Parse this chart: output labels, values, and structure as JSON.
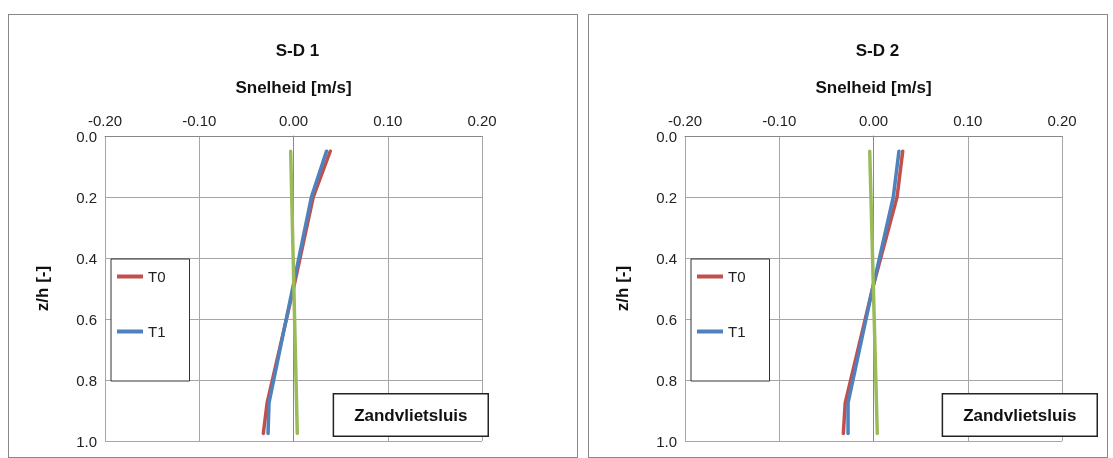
{
  "chart_data": [
    {
      "type": "line",
      "title": "S-D 1",
      "xlabel": "Snelheid [m/s]",
      "ylabel": "z/h [-]",
      "annotations": [
        "Zandvlietsluis"
      ],
      "xlim": [
        -0.2,
        0.2
      ],
      "ylim": [
        1.0,
        0.0
      ],
      "xticks": [
        {
          "value": -0.2,
          "label": "-0.20"
        },
        {
          "value": -0.1,
          "label": "-0.10"
        },
        {
          "value": 0,
          "label": "0.00"
        },
        {
          "value": 0.1,
          "label": "0.10"
        },
        {
          "value": 0.2,
          "label": "0.20"
        }
      ],
      "yticks": [
        {
          "value": 0,
          "label": "0.0"
        },
        {
          "value": 0.2,
          "label": "0.2"
        },
        {
          "value": 0.4,
          "label": "0.4"
        },
        {
          "value": 0.6,
          "label": "0.6"
        },
        {
          "value": 0.8,
          "label": "0.8"
        },
        {
          "value": 1,
          "label": "1.0"
        }
      ],
      "grid": true,
      "legend": "left",
      "marker": "none",
      "series": [
        {
          "name": "T0",
          "color": "#c0504d",
          "x": [
            0.039,
            0.021,
            0.0,
            -0.028,
            -0.032
          ],
          "values": [
            0.05,
            0.2,
            0.5,
            0.875,
            0.975
          ]
        },
        {
          "name": "T1",
          "color": "#4f81bd",
          "x": [
            0.035,
            0.019,
            -0.001,
            -0.026,
            -0.027
          ],
          "values": [
            0.05,
            0.2,
            0.5,
            0.875,
            0.975
          ]
        },
        {
          "color": "#9bbb59",
          "x": [
            -0.003,
            0.004
          ],
          "values": [
            0.05,
            0.975
          ]
        }
      ]
    },
    {
      "type": "line",
      "title": "S-D 2",
      "xlabel": "Snelheid [m/s]",
      "ylabel": "z/h [-]",
      "annotations": [
        "Zandvlietsluis"
      ],
      "xlim": [
        -0.2,
        0.2
      ],
      "ylim": [
        1.0,
        0.0
      ],
      "xticks": [
        {
          "value": -0.2,
          "label": "-0.20"
        },
        {
          "value": -0.1,
          "label": "-0.10"
        },
        {
          "value": 0,
          "label": "0.00"
        },
        {
          "value": 0.1,
          "label": "0.10"
        },
        {
          "value": 0.2,
          "label": "0.20"
        }
      ],
      "yticks": [
        {
          "value": 0,
          "label": "0.0"
        },
        {
          "value": 0.2,
          "label": "0.2"
        },
        {
          "value": 0.4,
          "label": "0.4"
        },
        {
          "value": 0.6,
          "label": "0.6"
        },
        {
          "value": 0.8,
          "label": "0.8"
        },
        {
          "value": 1,
          "label": "1.0"
        }
      ],
      "grid": true,
      "legend": "left",
      "marker": "none",
      "series": [
        {
          "name": "T0",
          "color": "#c0504d",
          "x": [
            0.031,
            0.025,
            -0.001,
            -0.03,
            -0.032
          ],
          "values": [
            0.05,
            0.2,
            0.5,
            0.875,
            0.975
          ]
        },
        {
          "name": "T1",
          "color": "#4f81bd",
          "x": [
            0.027,
            0.021,
            -0.001,
            -0.027,
            -0.027
          ],
          "values": [
            0.05,
            0.2,
            0.5,
            0.875,
            0.975
          ]
        },
        {
          "color": "#9bbb59",
          "x": [
            -0.004,
            0.004
          ],
          "values": [
            0.05,
            0.975
          ]
        }
      ]
    }
  ]
}
